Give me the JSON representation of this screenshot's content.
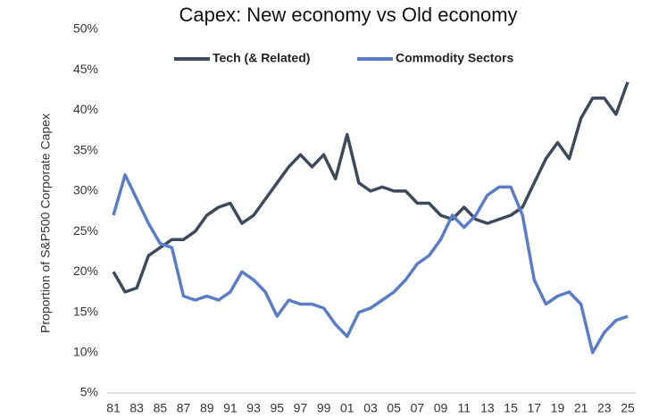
{
  "chart_data": {
    "type": "line",
    "title": "Capex: New economy vs Old economy",
    "y_label": "Proportion of S&P500 Corporate Capex",
    "categories": [
      "81",
      null,
      "83",
      null,
      "85",
      null,
      "87",
      null,
      "89",
      null,
      "91",
      null,
      "93",
      null,
      "95",
      null,
      "97",
      null,
      "99",
      null,
      "01",
      null,
      "03",
      null,
      "05",
      null,
      "07",
      null,
      "09",
      null,
      "11",
      null,
      "13",
      null,
      "15",
      null,
      "17",
      null,
      "19",
      null,
      "21",
      null,
      "23",
      null,
      "25"
    ],
    "series": [
      {
        "name": "Tech (& Related)",
        "color": "#3d4a5c",
        "values": [
          20,
          17.5,
          18,
          22,
          23,
          24,
          24,
          25,
          27,
          28,
          28.5,
          26,
          27,
          29,
          31,
          33,
          34.5,
          33,
          34.5,
          31.5,
          37,
          31,
          30,
          30.5,
          30,
          30,
          28.5,
          28.5,
          27,
          26.5,
          28,
          26.5,
          26,
          26.5,
          27,
          28,
          31,
          34,
          36,
          34,
          39,
          41.5,
          41.5,
          39.5,
          43.5
        ]
      },
      {
        "name": "Commodity Sectors",
        "color": "#5b7cc9",
        "values": [
          27,
          32,
          29,
          26,
          23.5,
          23,
          17,
          16.5,
          17,
          16.5,
          17.5,
          20,
          19,
          17.5,
          14.5,
          16.5,
          16,
          16,
          15.5,
          13.5,
          12,
          15,
          15.5,
          16.5,
          17.5,
          19,
          21,
          22,
          24,
          27,
          25.5,
          27,
          29.5,
          30.5,
          30.5,
          27,
          19,
          16,
          17,
          17.5,
          16,
          10,
          12.5,
          14,
          14.5
        ]
      }
    ],
    "ylim": [
      5,
      50
    ],
    "yticks": [
      {
        "value": 5,
        "label": "5%"
      },
      {
        "value": 10,
        "label": "10%"
      },
      {
        "value": 15,
        "label": "15%"
      },
      {
        "value": 20,
        "label": "20%"
      },
      {
        "value": 25,
        "label": "25%"
      },
      {
        "value": 30,
        "label": "30%"
      },
      {
        "value": 35,
        "label": "35%"
      },
      {
        "value": 40,
        "label": "40%"
      },
      {
        "value": 45,
        "label": "45%"
      },
      {
        "value": 50,
        "label": "50%"
      }
    ],
    "grid": false,
    "legend": "top"
  }
}
